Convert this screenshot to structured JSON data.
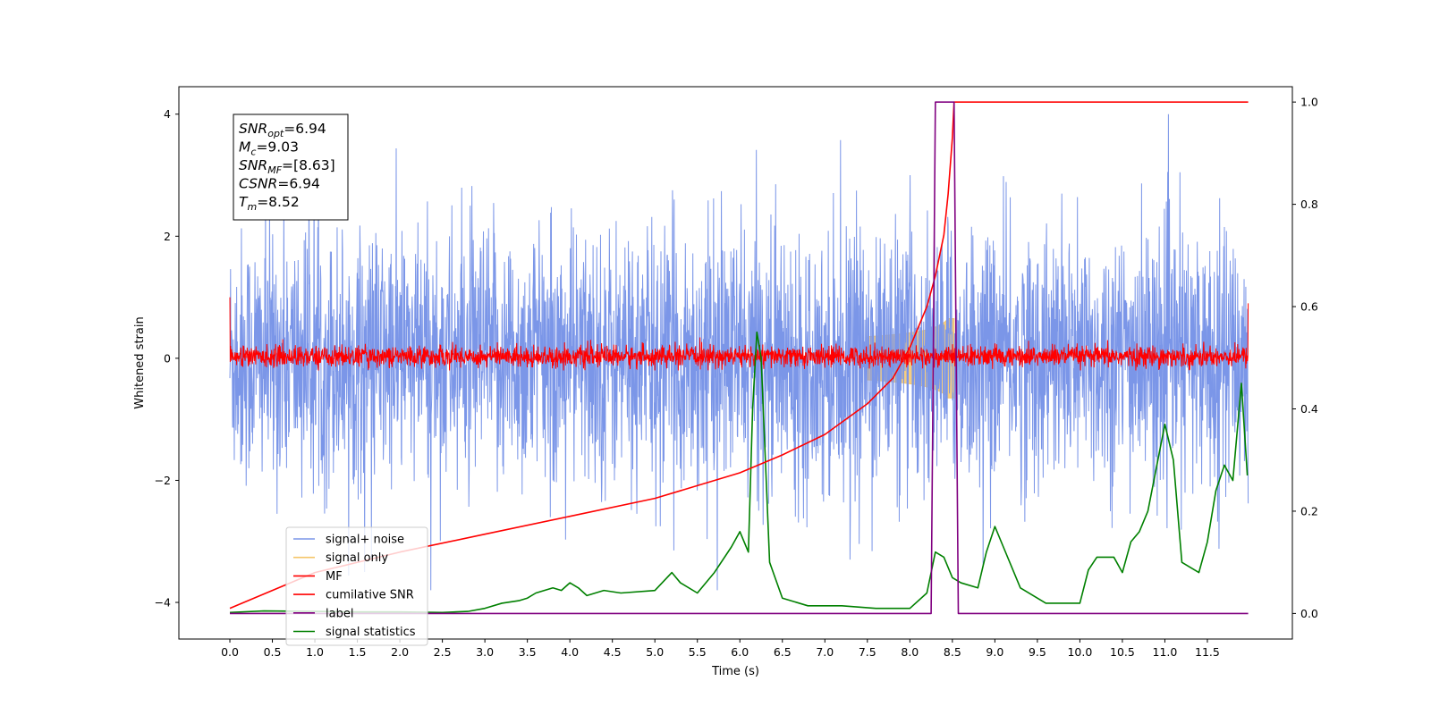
{
  "chart_data": {
    "type": "line",
    "title": "",
    "xlabel": "Time (s)",
    "ylabel": "Whitened strain",
    "xlim": [
      -0.6,
      12.5
    ],
    "ylim": [
      -4.6,
      4.45
    ],
    "y2lim": [
      -0.05,
      1.03
    ],
    "x_ticks": [
      "0.0",
      "0.5",
      "1.0",
      "1.5",
      "2.0",
      "2.5",
      "3.0",
      "3.5",
      "4.0",
      "4.5",
      "5.0",
      "5.5",
      "6.0",
      "6.5",
      "7.0",
      "7.5",
      "8.0",
      "8.5",
      "9.0",
      "9.5",
      "10.0",
      "10.5",
      "11.0",
      "11.5"
    ],
    "y_ticks": [
      "−4",
      "−2",
      "0",
      "2",
      "4"
    ],
    "y2_ticks": [
      "0.0",
      "0.2",
      "0.4",
      "0.6",
      "0.8",
      "1.0"
    ],
    "grid": false,
    "legend_position": "lower-left",
    "info_box": {
      "lines": [
        {
          "symbol": "SNR",
          "sub": "opt",
          "value": "=6.94"
        },
        {
          "symbol": "M",
          "sub": "c",
          "value": "=9.03"
        },
        {
          "symbol": "SNR",
          "sub": "MF",
          "value": "=[8.63]"
        },
        {
          "symbol": "CSNR",
          "sub": "",
          "value": "=6.94"
        },
        {
          "symbol": "T",
          "sub": "m",
          "value": "=8.52"
        }
      ]
    },
    "series": [
      {
        "name": "signal+ noise",
        "color": "#7b96e8",
        "axis": "left",
        "description": "noisy whitened strain, range about -3.8 to 4.0"
      },
      {
        "name": "signal only",
        "color": "#f5c66a",
        "axis": "left",
        "chirp_end": 8.52,
        "peak_amplitude": 0.65
      },
      {
        "name": "MF",
        "color": "#ff0000",
        "axis": "left",
        "description": "matched-filter output, range about -0.2 to 0.4"
      },
      {
        "name": "cumilative SNR",
        "color": "#ff0000",
        "axis": "right",
        "x": [
          0.0,
          1.0,
          2.0,
          3.0,
          4.0,
          5.0,
          6.0,
          6.5,
          7.0,
          7.5,
          7.8,
          8.0,
          8.2,
          8.3,
          8.4,
          8.45,
          8.5,
          8.52,
          9.0,
          10.0,
          11.0,
          11.5,
          11.98
        ],
        "values": [
          0.01,
          0.08,
          0.12,
          0.155,
          0.19,
          0.225,
          0.275,
          0.31,
          0.35,
          0.41,
          0.46,
          0.52,
          0.6,
          0.66,
          0.74,
          0.82,
          0.93,
          1.0,
          1.0,
          1.0,
          1.0,
          1.0,
          1.0
        ]
      },
      {
        "name": "label",
        "color": "#800080",
        "axis": "right",
        "x": [
          0.0,
          8.25,
          8.3,
          8.52,
          8.57,
          11.98
        ],
        "values": [
          0.0,
          0.0,
          1.0,
          1.0,
          0.0,
          0.0
        ]
      },
      {
        "name": "signal statistics",
        "color": "#008000",
        "axis": "right",
        "x": [
          0.0,
          0.4,
          1.0,
          1.5,
          2.0,
          2.5,
          2.8,
          3.0,
          3.2,
          3.4,
          3.5,
          3.6,
          3.8,
          3.9,
          4.0,
          4.1,
          4.2,
          4.4,
          4.6,
          5.0,
          5.2,
          5.3,
          5.5,
          5.7,
          5.9,
          6.0,
          6.1,
          6.15,
          6.2,
          6.25,
          6.35,
          6.5,
          6.8,
          7.2,
          7.6,
          8.0,
          8.2,
          8.3,
          8.4,
          8.5,
          8.6,
          8.8,
          8.9,
          9.0,
          9.1,
          9.3,
          9.6,
          9.8,
          10.0,
          10.1,
          10.2,
          10.4,
          10.5,
          10.6,
          10.7,
          10.8,
          11.0,
          11.1,
          11.2,
          11.4,
          11.5,
          11.6,
          11.7,
          11.8,
          11.9,
          11.97
        ],
        "values": [
          0.002,
          0.005,
          0.004,
          0.003,
          0.003,
          0.002,
          0.004,
          0.01,
          0.02,
          0.025,
          0.03,
          0.04,
          0.05,
          0.045,
          0.06,
          0.05,
          0.035,
          0.045,
          0.04,
          0.045,
          0.08,
          0.06,
          0.04,
          0.08,
          0.13,
          0.16,
          0.12,
          0.4,
          0.55,
          0.5,
          0.1,
          0.03,
          0.015,
          0.015,
          0.01,
          0.01,
          0.04,
          0.12,
          0.11,
          0.07,
          0.06,
          0.05,
          0.12,
          0.17,
          0.13,
          0.05,
          0.02,
          0.02,
          0.02,
          0.085,
          0.11,
          0.11,
          0.08,
          0.14,
          0.16,
          0.2,
          0.37,
          0.3,
          0.1,
          0.08,
          0.14,
          0.24,
          0.29,
          0.26,
          0.45,
          0.27
        ]
      }
    ]
  }
}
